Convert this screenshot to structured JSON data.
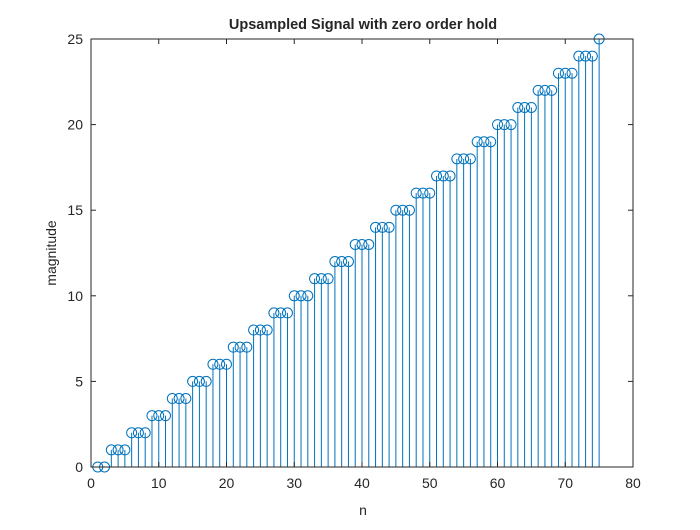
{
  "chart_data": {
    "type": "stem",
    "title": "Upsampled Signal with zero order hold",
    "xlabel": "n",
    "ylabel": "magnitude",
    "xlim": [
      0,
      80
    ],
    "ylim": [
      0,
      25
    ],
    "xticks": [
      "0",
      "10",
      "20",
      "30",
      "40",
      "50",
      "60",
      "70",
      "80"
    ],
    "yticks": [
      "0",
      "5",
      "10",
      "15",
      "20",
      "25"
    ],
    "grid": false,
    "box": true,
    "colors": {
      "stem": "#0072bd",
      "axes": "#262626",
      "background": "#ffffff"
    },
    "x": [
      1,
      2,
      3,
      4,
      5,
      6,
      7,
      8,
      9,
      10,
      11,
      12,
      13,
      14,
      15,
      16,
      17,
      18,
      19,
      20,
      21,
      22,
      23,
      24,
      25,
      26,
      27,
      28,
      29,
      30,
      31,
      32,
      33,
      34,
      35,
      36,
      37,
      38,
      39,
      40,
      41,
      42,
      43,
      44,
      45,
      46,
      47,
      48,
      49,
      50,
      51,
      52,
      53,
      54,
      55,
      56,
      57,
      58,
      59,
      60,
      61,
      62,
      63,
      64,
      65,
      66,
      67,
      68,
      69,
      70,
      71,
      72,
      73,
      74,
      75
    ],
    "y": [
      0,
      0,
      1,
      1,
      1,
      2,
      2,
      2,
      3,
      3,
      3,
      4,
      4,
      4,
      5,
      5,
      5,
      6,
      6,
      6,
      7,
      7,
      7,
      8,
      8,
      8,
      9,
      9,
      9,
      10,
      10,
      10,
      11,
      11,
      11,
      12,
      12,
      12,
      13,
      13,
      13,
      14,
      14,
      14,
      15,
      15,
      15,
      16,
      16,
      16,
      17,
      17,
      17,
      18,
      18,
      18,
      19,
      19,
      19,
      20,
      20,
      20,
      21,
      21,
      21,
      22,
      22,
      22,
      23,
      23,
      23,
      24,
      24,
      24,
      25
    ]
  }
}
